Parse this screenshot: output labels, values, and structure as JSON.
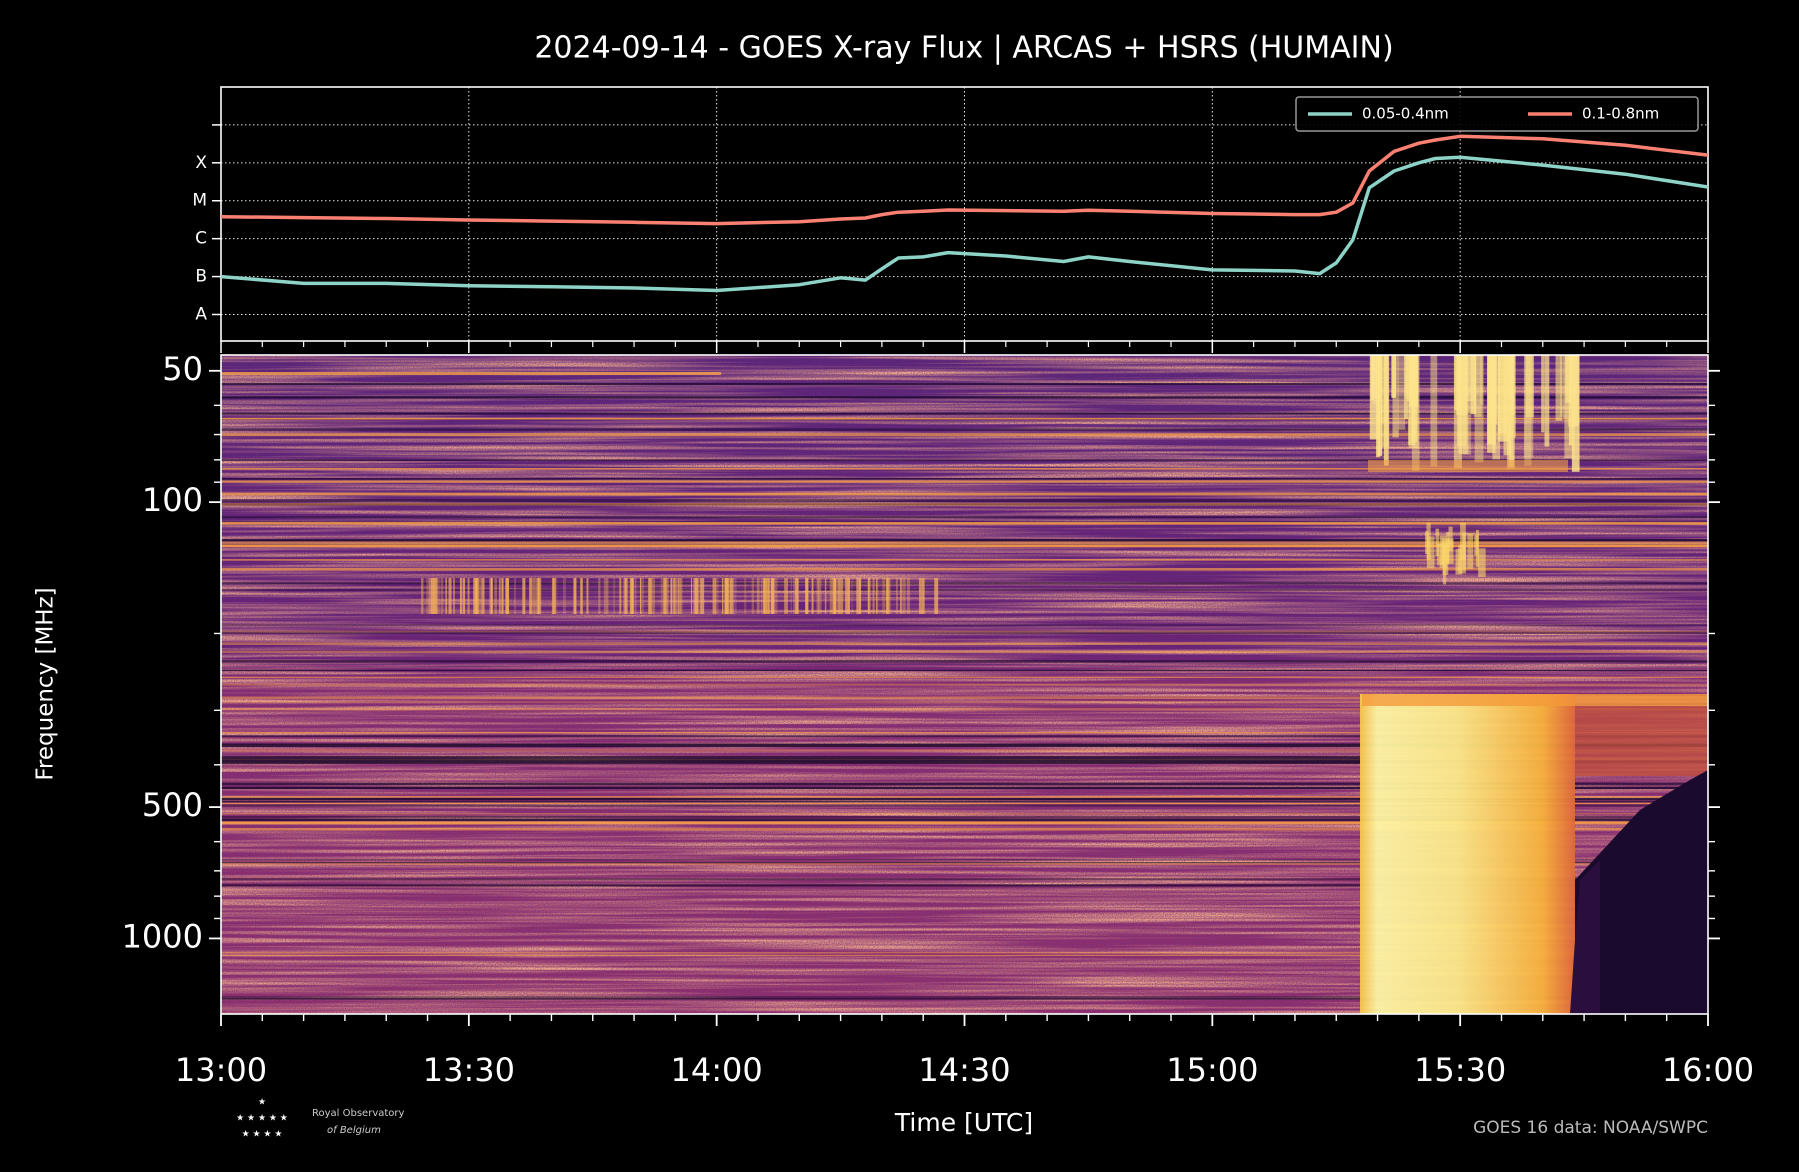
{
  "chart_data": [
    {
      "type": "line",
      "title": "2024-09-14 - GOES X-ray Flux | ARCAS + HSRS (HUMAIN)",
      "log_y": true,
      "grid": true,
      "legend": "upper right",
      "xlim": [
        0,
        180
      ],
      "xticks": [
        0,
        30,
        60,
        90,
        120,
        150,
        180
      ],
      "ylim": [
        2e-09,
        0.01
      ],
      "yticks": [
        {
          "value": 1e-08,
          "label": "A"
        },
        {
          "value": 1e-07,
          "label": "B"
        },
        {
          "value": 1e-06,
          "label": "C"
        },
        {
          "value": 1e-05,
          "label": "M"
        },
        {
          "value": 0.0001,
          "label": "X"
        },
        0.001
      ],
      "x": [
        0,
        10,
        20,
        30,
        40,
        50,
        60,
        70,
        75,
        78,
        80,
        82,
        85,
        88,
        95,
        102,
        105,
        110,
        120,
        130,
        133,
        135,
        137,
        139,
        142,
        145,
        147,
        150,
        160,
        170,
        180
      ],
      "series": [
        {
          "name": "0.05-0.4nm",
          "color": "#8dd3c7",
          "values": [
            1e-07,
            6.6e-08,
            6.6e-08,
            5.7e-08,
            5.4e-08,
            5e-08,
            4.3e-08,
            6.1e-08,
            9.3e-08,
            8.1e-08,
            1.6e-07,
            3.1e-07,
            3.3e-07,
            4.3e-07,
            3.5e-07,
            2.5e-07,
            3.3e-07,
            2.5e-07,
            1.5e-07,
            1.4e-07,
            1.2e-07,
            2.3e-07,
            9.3e-07,
            2.2e-05,
            6.1e-05,
            0.0001,
            0.00013,
            0.00014,
            8.7e-05,
            5e-05,
            2.3e-05
          ]
        },
        {
          "name": "0.1-0.8nm",
          "color": "#fa8072",
          "values": [
            3.8e-06,
            3.6e-06,
            3.4e-06,
            3.1e-06,
            2.9e-06,
            2.7e-06,
            2.5e-06,
            2.8e-06,
            3.3e-06,
            3.5e-06,
            4.3e-06,
            5e-06,
            5.3e-06,
            5.7e-06,
            5.5e-06,
            5.3e-06,
            5.6e-06,
            5.3e-06,
            4.6e-06,
            4.3e-06,
            4.3e-06,
            5e-06,
            8.7e-06,
            6.1e-05,
            0.0002,
            0.00033,
            0.0004,
            0.0005,
            0.00043,
            0.00029,
            0.00016
          ]
        }
      ]
    },
    {
      "type": "spectrogram",
      "x_label": "Time [UTC]",
      "y_label": "Frequency [MHz]",
      "log_y": true,
      "y_inverted": true,
      "xlim": [
        0,
        180
      ],
      "xticks": [
        {
          "value": 0,
          "label": "13:00"
        },
        {
          "value": 30,
          "label": "13:30"
        },
        {
          "value": 60,
          "label": "14:00"
        },
        {
          "value": 90,
          "label": "14:30"
        },
        {
          "value": 120,
          "label": "15:00"
        },
        {
          "value": 150,
          "label": "15:30"
        },
        {
          "value": 180,
          "label": "16:00"
        }
      ],
      "ylim": [
        46,
        1490
      ],
      "yticks": [
        50,
        100,
        500,
        1000
      ],
      "yminorticks": [
        60,
        70,
        80,
        90,
        200,
        300,
        400,
        600,
        700,
        800,
        900
      ],
      "credit": "GOES 16 data: NOAA/SWPC",
      "logo": [
        "Royal Observatory",
        "of Belgium"
      ]
    }
  ]
}
